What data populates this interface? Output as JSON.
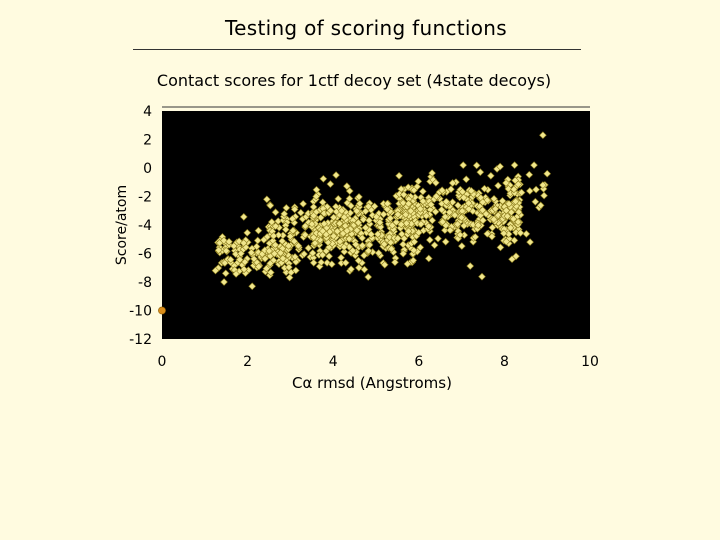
{
  "slide": {
    "title": "Testing of scoring functions"
  },
  "chart_data": {
    "type": "scatter",
    "title": "Contact scores for 1ctf decoy set (4state decoys)",
    "xlabel": "Cα rmsd (Angstroms)",
    "ylabel": "Score/atom",
    "xlim": [
      0,
      10
    ],
    "ylim": [
      -12,
      4
    ],
    "x_ticks": [
      "0",
      "2",
      "4",
      "6",
      "8",
      "10"
    ],
    "y_ticks": [
      "4",
      "2",
      "0",
      "-2",
      "-4",
      "-6",
      "-8",
      "-10",
      "-12"
    ],
    "plot_background": "#000000",
    "page_background": "#fffbe0",
    "marker_color": "#f0e68c",
    "marker_edge": "#8a7a1a",
    "native_color": "#d98c1a",
    "grid": false,
    "legend": "none",
    "native": {
      "x": 0.0,
      "y": -10.0
    },
    "series": [
      {
        "clusters": [
          {
            "x_range": [
              1.3,
              3.2
            ],
            "y_center": -6.0,
            "y_sd": 0.85,
            "count": 150
          },
          {
            "x_range": [
              2.5,
              4.5
            ],
            "y_center": -4.6,
            "y_sd": 1.0,
            "count": 130
          },
          {
            "x_range": [
              3.5,
              6.0
            ],
            "y_center": -4.2,
            "y_sd": 1.15,
            "count": 320
          },
          {
            "x_range": [
              5.5,
              8.4
            ],
            "y_center": -3.0,
            "y_sd": 1.15,
            "count": 360
          },
          {
            "x_range": [
              8.0,
              9.0
            ],
            "y_center": -1.6,
            "y_sd": 1.1,
            "count": 22
          }
        ],
        "points": [
          {
            "x": 8.9,
            "y": 2.3
          },
          {
            "x": 9.0,
            "y": -0.4
          },
          {
            "x": 8.9,
            "y": -1.2
          },
          {
            "x": 8.6,
            "y": -5.2
          },
          {
            "x": 1.25,
            "y": -7.2
          },
          {
            "x": 1.45,
            "y": -8.0
          },
          {
            "x": 2.45,
            "y": -2.2
          },
          {
            "x": 3.1,
            "y": -2.9
          },
          {
            "x": 4.6,
            "y": -7.0
          },
          {
            "x": 7.9,
            "y": 0.1
          }
        ]
      }
    ]
  }
}
